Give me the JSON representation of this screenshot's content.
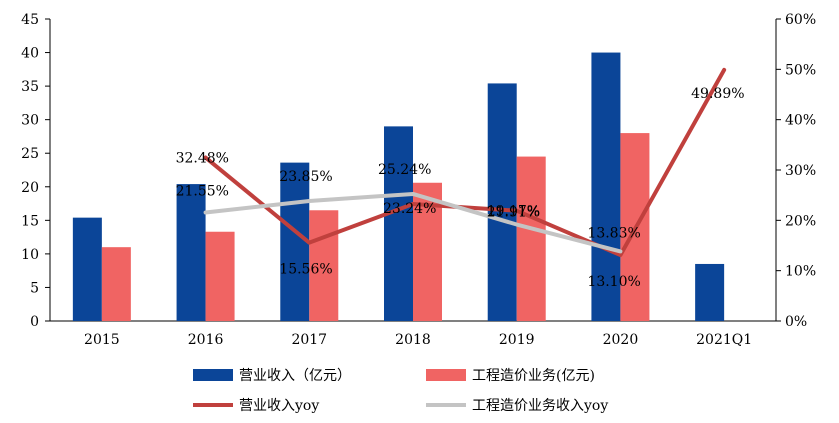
{
  "chart_data": {
    "type": "bar",
    "categories": [
      "2015",
      "2016",
      "2017",
      "2018",
      "2019",
      "2020",
      "2021Q1"
    ],
    "y_left": {
      "min": 0,
      "max": 45,
      "step": 5
    },
    "y_right": {
      "min": 0,
      "max": 60,
      "step": 10,
      "format": "percent"
    },
    "grid": false,
    "legend_position": "bottom",
    "bar_series": [
      {
        "name": "营业收入（亿元）",
        "color": "#0b4598",
        "values": [
          15.4,
          20.4,
          23.6,
          29.0,
          35.4,
          40.0,
          8.5
        ]
      },
      {
        "name": "工程造价业务(亿元)",
        "color": "#f06463",
        "values": [
          11.0,
          13.3,
          16.5,
          20.6,
          24.5,
          28.0,
          null
        ]
      }
    ],
    "line_series": [
      {
        "name": "营业收入yoy",
        "color": "#c0403d",
        "values": [
          null,
          32.48,
          15.56,
          23.24,
          21.91,
          13.1,
          49.89
        ],
        "labels": [
          "",
          "32.48%",
          "15.56%",
          "23.24%",
          "21.91%",
          "13.10%",
          "49.89%"
        ]
      },
      {
        "name": "工程造价业务收入yoy",
        "color": "#c4c4c4",
        "values": [
          null,
          21.55,
          23.85,
          25.24,
          19.17,
          13.83,
          null
        ],
        "labels": [
          "",
          "21.55%",
          "23.85%",
          "25.24%",
          "19.17%",
          "13.83%",
          ""
        ]
      }
    ]
  }
}
